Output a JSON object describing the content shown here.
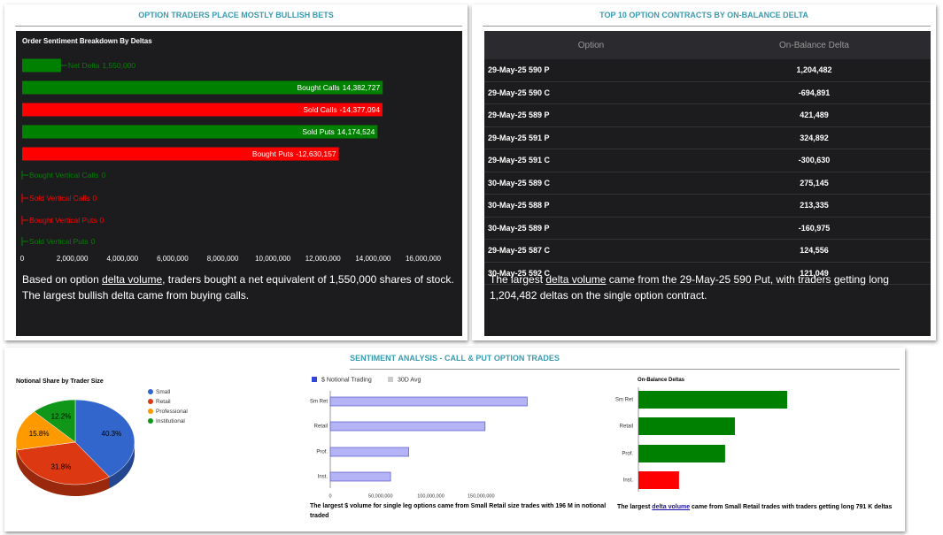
{
  "panels": [
    {
      "title": "OPTION TRADERS PLACE MOSTLY BULLISH BETS"
    },
    {
      "title": "TOP 10 OPTION CONTRACTS BY ON-BALANCE DELTA"
    },
    {
      "title": "SENTIMENT ANALYSIS - CALL & PUT OPTION TRADES"
    }
  ],
  "chart_data": [
    {
      "type": "hbar-signed",
      "title": "Order Sentiment Breakdown By Deltas",
      "categories": [
        "Net Delta",
        "Bought Calls",
        "Sold Calls",
        "Sold Puts",
        "Bought Puts",
        "Bought Vertical Calls",
        "Sold Vertical Calls",
        "Bought Vertical Puts",
        "Sold Vertical Puts"
      ],
      "values": [
        1550000,
        14382727,
        -14377094,
        14174524,
        -12630157,
        0,
        0,
        0,
        0
      ],
      "value_labels": [
        "1,550,000",
        "14,382,727",
        "-14,377,094",
        "14,174,524",
        "-12,630,157",
        "0",
        "0",
        "0",
        "0"
      ],
      "colors": [
        "#008000",
        "#008000",
        "#ff0000",
        "#008000",
        "#ff0000",
        "#008000",
        "#ff0000",
        "#ff0000",
        "#008000"
      ],
      "xlim": [
        0,
        16000000
      ],
      "xticks": [
        0,
        {
          "value": 2000000,
          "label": "2,000,000"
        },
        {
          "value": 4000000,
          "label": "4,000,000"
        },
        {
          "value": 6000000,
          "label": "6,000,000"
        },
        {
          "value": 8000000,
          "label": "8,000,000"
        },
        {
          "value": 10000000,
          "label": "10,000,000"
        },
        {
          "value": 12000000,
          "label": "12,000,000"
        },
        {
          "value": 14000000,
          "label": "14,000,000"
        },
        {
          "value": 16000000,
          "label": "16,000,000"
        }
      ]
    },
    {
      "type": "pie",
      "title": "Notional Share by Trader Size",
      "categories": [
        "Small",
        "Retail",
        "Professional",
        "Institutional"
      ],
      "values": [
        40.3,
        31.8,
        15.8,
        12.2
      ],
      "value_labels": [
        "40.3%",
        "31.8%",
        "15.8%",
        "12.2%"
      ],
      "colors": [
        "#3366cc",
        "#dc3912",
        "#ff9900",
        "#109618"
      ]
    },
    {
      "type": "hbar",
      "categories": [
        "Sm Ret",
        "Retail",
        "Prof.",
        "Inst."
      ],
      "series": [
        {
          "name": "$ Notional Trading",
          "color": "#b3b3f5",
          "values": [
            196000000,
            154000000,
            78000000,
            60000000
          ]
        },
        {
          "name": "30D Avg",
          "color": "#cccccc",
          "values": [
            null,
            null,
            null,
            null
          ]
        }
      ],
      "xlim": [
        0,
        200000000
      ],
      "xticks": [
        0,
        {
          "value": 50000000,
          "label": "50,000,000"
        },
        {
          "value": 100000000,
          "label": "100,000,000"
        },
        {
          "value": 150000000,
          "label": "150,000,000"
        }
      ]
    },
    {
      "type": "hbar-plain",
      "title": "On-Balance Deltas",
      "categories": [
        "Sm Ret",
        "Retail",
        "Prof.",
        "Inst."
      ],
      "values": [
        791000,
        513000,
        461000,
        216000
      ],
      "colors": [
        "#008000",
        "#008000",
        "#008000",
        "#ff0000"
      ]
    }
  ],
  "table": {
    "columns": [
      "Option",
      "On-Balance Delta"
    ],
    "rows": [
      [
        "29-May-25 590 P",
        "1,204,482"
      ],
      [
        "29-May-25 590 C",
        "-694,891"
      ],
      [
        "29-May-25 589 P",
        "421,489"
      ],
      [
        "29-May-25 591 P",
        "324,892"
      ],
      [
        "29-May-25 591 C",
        "-300,630"
      ],
      [
        "30-May-25 589 C",
        "275,145"
      ],
      [
        "30-May-25 588 P",
        "213,335"
      ],
      [
        "30-May-25 589 P",
        "-160,975"
      ],
      [
        "29-May-25 587 C",
        "124,556"
      ],
      [
        "30-May-25 592 C",
        "121,049"
      ]
    ]
  },
  "summaries": [
    {
      "before": "Based on option ",
      "link": "delta volume",
      "after": ", traders bought a net equivalent of 1,550,000 shares of stock. The largest bullish delta came from buying calls."
    },
    {
      "before": "The largest ",
      "link": "delta volume",
      "after": " came from the 29-May-25 590 Put, with traders getting long 1,204,482 deltas on the single option contract."
    },
    {
      "text": "The largest $ volume for single leg options came from Small Retail size trades with 196 M in notional traded"
    },
    {
      "before": "The largest ",
      "link": "delta volume",
      "after": " came from Small Retail trades with traders getting long 791 K deltas"
    }
  ]
}
